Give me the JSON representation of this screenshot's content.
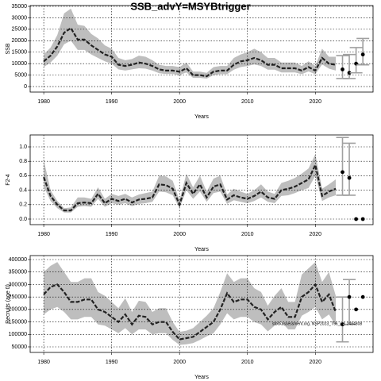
{
  "chart_data": [
    {
      "type": "line",
      "title": "SSB_advY=MSYBtrigger",
      "xlabel": "Years",
      "ylabel": "SSB",
      "x": [
        1980,
        1981,
        1982,
        1983,
        1984,
        1985,
        1986,
        1987,
        1988,
        1989,
        1990,
        1991,
        1992,
        1993,
        1994,
        1995,
        1996,
        1997,
        1998,
        1999,
        2000,
        2001,
        2002,
        2003,
        2004,
        2005,
        2006,
        2007,
        2008,
        2009,
        2010,
        2011,
        2012,
        2013,
        2014,
        2015,
        2016,
        2017,
        2018,
        2019,
        2020,
        2021,
        2022,
        2023
      ],
      "values": [
        11000,
        13500,
        17500,
        23500,
        25500,
        20500,
        20500,
        18000,
        16000,
        14000,
        13000,
        9500,
        9000,
        9500,
        10500,
        10000,
        9000,
        7500,
        7000,
        7000,
        6500,
        8000,
        5000,
        5000,
        4500,
        6500,
        7000,
        7000,
        9500,
        11000,
        11500,
        12500,
        11500,
        9500,
        9500,
        8000,
        8000,
        8000,
        7000,
        8500,
        7000,
        12500,
        10000,
        9500
      ],
      "lower": [
        8500,
        10500,
        13500,
        18500,
        20000,
        16000,
        16000,
        14000,
        12500,
        11000,
        10000,
        7500,
        7000,
        7500,
        8000,
        7800,
        7000,
        5800,
        5500,
        5500,
        5000,
        6200,
        3800,
        3800,
        3500,
        5000,
        5400,
        5400,
        7400,
        8500,
        9000,
        9700,
        9000,
        7400,
        7400,
        6200,
        6200,
        6200,
        5400,
        6600,
        5400,
        9700,
        7800,
        7000
      ],
      "upper": [
        14000,
        17000,
        22500,
        32000,
        34000,
        27000,
        26500,
        23000,
        21000,
        18000,
        16500,
        12500,
        11500,
        12000,
        13500,
        13000,
        11500,
        9500,
        9000,
        9000,
        8500,
        10500,
        6500,
        6500,
        6000,
        8500,
        9000,
        9000,
        12500,
        14000,
        15000,
        16500,
        15000,
        12500,
        12500,
        10500,
        10500,
        10500,
        9000,
        11000,
        9000,
        16500,
        13000,
        13000
      ],
      "projection": {
        "x": [
          2024,
          2025,
          2026,
          2027
        ],
        "values": [
          7500,
          6000,
          10000,
          14000
        ],
        "lower": [
          3500,
          3500,
          6000,
          9500
        ],
        "upper": [
          13500,
          14000,
          17000,
          21000
        ]
      },
      "xlim": [
        1978,
        2028.5
      ],
      "xticks": [
        1980,
        1990,
        2000,
        2010,
        2020
      ],
      "ylim": [
        -2400,
        35350
      ],
      "yticks": [
        0,
        5000,
        10000,
        15000,
        20000,
        25000,
        30000,
        35000
      ],
      "grid": true,
      "color": "#222222",
      "band_color": "#bebebe",
      "errorbar_color": "#a0a0a0"
    },
    {
      "type": "line",
      "xlabel": "Years",
      "ylabel": "F2-4",
      "x": [
        1980,
        1981,
        1982,
        1983,
        1984,
        1985,
        1986,
        1987,
        1988,
        1989,
        1990,
        1991,
        1992,
        1993,
        1994,
        1995,
        1996,
        1997,
        1998,
        1999,
        2000,
        2001,
        2002,
        2003,
        2004,
        2005,
        2006,
        2007,
        2008,
        2009,
        2010,
        2011,
        2012,
        2013,
        2014,
        2015,
        2016,
        2017,
        2018,
        2019,
        2020,
        2021,
        2022,
        2023
      ],
      "values": [
        0.58,
        0.32,
        0.2,
        0.12,
        0.12,
        0.22,
        0.23,
        0.22,
        0.35,
        0.22,
        0.28,
        0.25,
        0.28,
        0.23,
        0.27,
        0.28,
        0.3,
        0.48,
        0.47,
        0.42,
        0.2,
        0.5,
        0.35,
        0.48,
        0.3,
        0.45,
        0.48,
        0.27,
        0.33,
        0.3,
        0.28,
        0.32,
        0.38,
        0.3,
        0.28,
        0.4,
        0.42,
        0.45,
        0.5,
        0.55,
        0.75,
        0.32,
        0.38,
        0.42
      ],
      "lower": [
        0.45,
        0.25,
        0.15,
        0.09,
        0.09,
        0.17,
        0.18,
        0.17,
        0.28,
        0.17,
        0.22,
        0.2,
        0.22,
        0.18,
        0.21,
        0.22,
        0.24,
        0.38,
        0.37,
        0.33,
        0.15,
        0.4,
        0.28,
        0.38,
        0.24,
        0.36,
        0.38,
        0.21,
        0.26,
        0.24,
        0.22,
        0.25,
        0.3,
        0.24,
        0.22,
        0.32,
        0.33,
        0.36,
        0.4,
        0.43,
        0.6,
        0.25,
        0.3,
        0.33
      ],
      "upper": [
        0.82,
        0.4,
        0.25,
        0.15,
        0.16,
        0.3,
        0.3,
        0.28,
        0.44,
        0.28,
        0.35,
        0.32,
        0.35,
        0.3,
        0.34,
        0.36,
        0.38,
        0.6,
        0.59,
        0.53,
        0.26,
        0.63,
        0.44,
        0.6,
        0.38,
        0.56,
        0.6,
        0.34,
        0.42,
        0.38,
        0.35,
        0.4,
        0.48,
        0.38,
        0.35,
        0.5,
        0.53,
        0.57,
        0.63,
        0.7,
        0.9,
        0.42,
        0.48,
        0.55
      ],
      "projection": {
        "x": [
          2024,
          2025,
          2026,
          2027
        ],
        "values": [
          0.65,
          0.57,
          0,
          0
        ],
        "lower": [
          0.33,
          0.33,
          null,
          null
        ],
        "upper": [
          1.13,
          1.05,
          null,
          null
        ]
      },
      "xlim": [
        1978,
        2028.5
      ],
      "xticks": [
        1980,
        1990,
        2000,
        2010,
        2020
      ],
      "ylim": [
        -0.077,
        1.165
      ],
      "yticks": [
        {
          "value": 0,
          "label": "0.0"
        },
        0.2,
        0.4,
        0.6,
        0.8,
        {
          "value": 1,
          "label": "1.0"
        }
      ],
      "grid": true,
      "color": "#222222",
      "band_color": "#bebebe",
      "errorbar_color": "#a0a0a0"
    },
    {
      "type": "line",
      "xlabel": "Years",
      "ylabel": "Recruits (age 0)",
      "annotation": "stockassessment.org, NSP2023_T96_pt1.2484808",
      "x": [
        1980,
        1981,
        1982,
        1983,
        1984,
        1985,
        1986,
        1987,
        1988,
        1989,
        1990,
        1991,
        1992,
        1993,
        1994,
        1995,
        1996,
        1997,
        1998,
        1999,
        2000,
        2001,
        2002,
        2003,
        2004,
        2005,
        2006,
        2007,
        2008,
        2009,
        2010,
        2011,
        2012,
        2013,
        2014,
        2015,
        2016,
        2017,
        2018,
        2019,
        2020,
        2021,
        2022,
        2023
      ],
      "values": [
        260000,
        290000,
        300000,
        270000,
        230000,
        230000,
        240000,
        240000,
        200000,
        190000,
        170000,
        150000,
        180000,
        140000,
        175000,
        170000,
        140000,
        150000,
        150000,
        110000,
        80000,
        85000,
        90000,
        110000,
        130000,
        150000,
        200000,
        265000,
        230000,
        240000,
        240000,
        210000,
        200000,
        160000,
        190000,
        210000,
        170000,
        170000,
        250000,
        270000,
        300000,
        230000,
        260000,
        190000
      ],
      "lower": [
        180000,
        200000,
        210000,
        190000,
        160000,
        160000,
        170000,
        170000,
        140000,
        135000,
        120000,
        105000,
        125000,
        100000,
        120000,
        120000,
        100000,
        105000,
        105000,
        78000,
        58000,
        60000,
        65000,
        78000,
        92000,
        105000,
        140000,
        185000,
        160000,
        170000,
        170000,
        150000,
        140000,
        112000,
        135000,
        150000,
        120000,
        120000,
        175000,
        190000,
        210000,
        160000,
        180000,
        135000
      ],
      "upper": [
        350000,
        375000,
        390000,
        350000,
        310000,
        310000,
        325000,
        325000,
        270000,
        255000,
        230000,
        205000,
        245000,
        190000,
        235000,
        230000,
        190000,
        205000,
        205000,
        150000,
        110000,
        115000,
        125000,
        150000,
        175000,
        205000,
        270000,
        345000,
        310000,
        325000,
        325000,
        285000,
        270000,
        215000,
        255000,
        285000,
        230000,
        230000,
        340000,
        365000,
        390000,
        310000,
        350000,
        255000
      ],
      "projection": {
        "x": [
          2024,
          2025,
          2026,
          2027
        ],
        "values": [
          140000,
          250000,
          200000,
          250000
        ],
        "lower": [
          70000,
          140000,
          null,
          null
        ],
        "upper": [
          250000,
          320000,
          null,
          null
        ]
      },
      "xlim": [
        1978,
        2028.5
      ],
      "xticks": [
        1980,
        1990,
        2000,
        2010,
        2020
      ],
      "ylim": [
        27700,
        415900
      ],
      "yticks": [
        50000,
        100000,
        150000,
        200000,
        250000,
        300000,
        350000,
        400000
      ],
      "grid": true,
      "color": "#222222",
      "band_color": "#bebebe",
      "errorbar_color": "#a0a0a0"
    }
  ]
}
